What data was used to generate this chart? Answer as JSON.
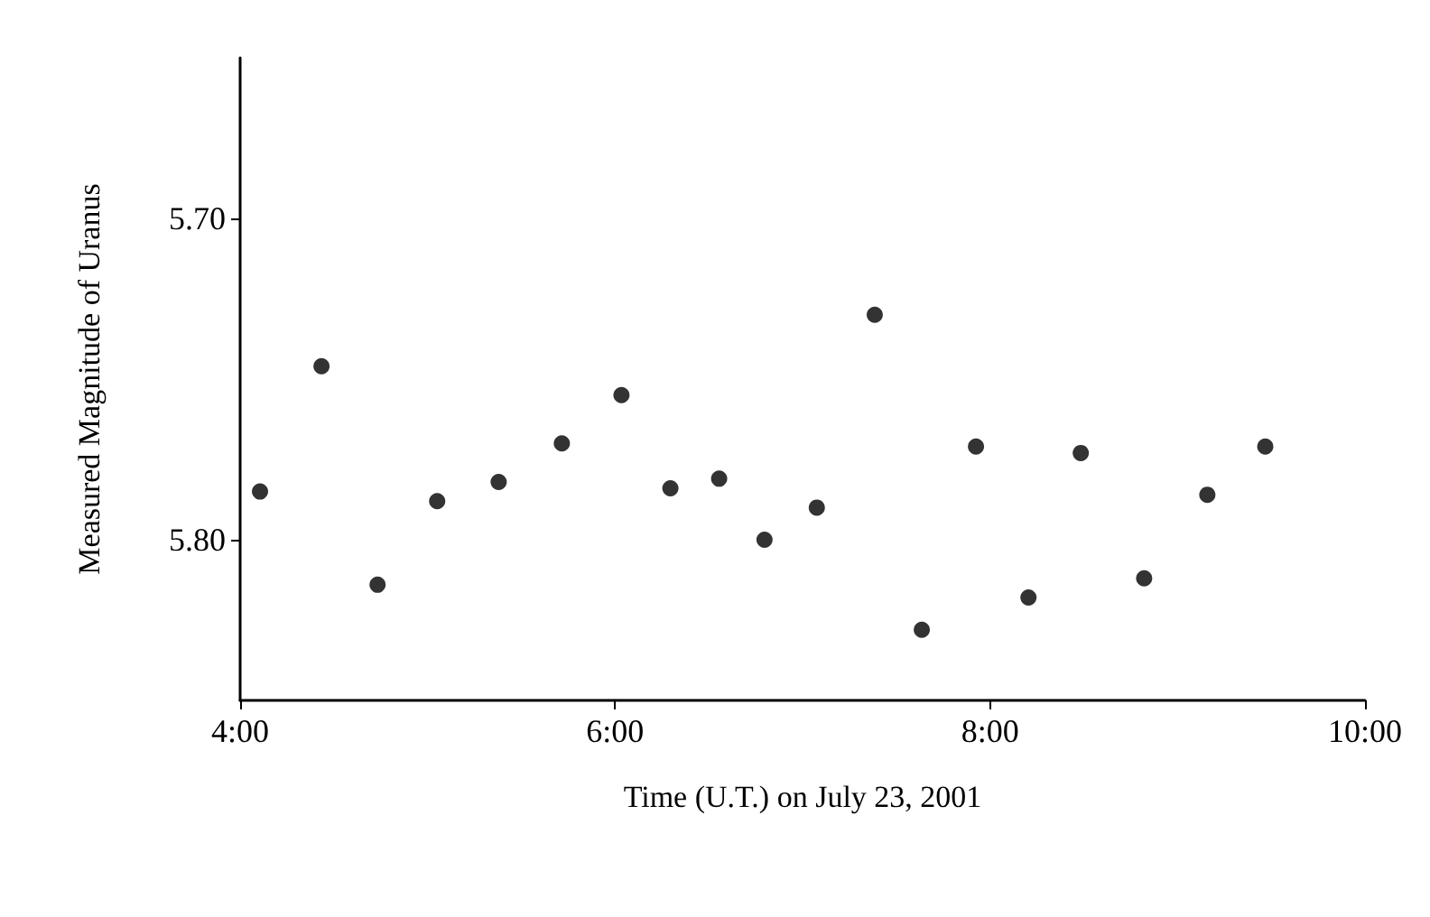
{
  "chart_data": {
    "type": "scatter",
    "xlabel": "Time (U.T.) on July 23, 2001",
    "ylabel": "Measured Magnitude of Uranus",
    "x": [
      4.106,
      4.434,
      4.733,
      5.051,
      5.379,
      5.716,
      6.034,
      6.295,
      6.555,
      6.797,
      7.076,
      7.385,
      7.636,
      7.925,
      8.205,
      8.484,
      8.822,
      9.159,
      9.468
    ],
    "series": [
      {
        "color": "#000000",
        "values": [
          5.785,
          5.746,
          5.814,
          5.788,
          5.782,
          5.77,
          5.755,
          5.784,
          5.781,
          5.8,
          5.79,
          5.73,
          5.828,
          5.771,
          5.818,
          5.773,
          5.812,
          5.786,
          5.771
        ]
      }
    ],
    "xlim": [
      4,
      10
    ],
    "xticks": [
      {
        "value": 4,
        "label": "4:00"
      },
      {
        "value": 6,
        "label": "6:00"
      },
      {
        "value": 8,
        "label": "8:00"
      },
      {
        "value": 10,
        "label": "10:00"
      }
    ],
    "ylim": [
      5.85,
      5.65
    ],
    "yticks": [
      {
        "value": 5.7,
        "label": "5.70"
      },
      {
        "value": 5.8,
        "label": "5.80"
      }
    ],
    "grid": false,
    "marker": "circle"
  }
}
